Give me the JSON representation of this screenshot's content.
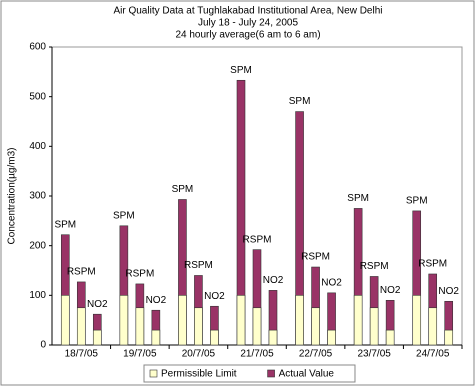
{
  "chart_data": {
    "type": "bar",
    "title": [
      "Air Quality Data at Tughlakabad Institutional Area, New Delhi",
      "July 18 - July 24, 2005",
      "24 hourly average(6 am to 6 am)"
    ],
    "y_label": "Concentration(µg/m3)",
    "groups": [
      "18/7/05",
      "19/7/05",
      "20/7/05",
      "21/7/05",
      "22/7/05",
      "23/7/05",
      "24/7/05"
    ],
    "categories": [
      "SPM",
      "RSPM",
      "NO2",
      "SPM",
      "RSPM",
      "NO2",
      "SPM",
      "RSPM",
      "NO2",
      "SPM",
      "RSPM",
      "NO2",
      "SPM",
      "RSPM",
      "NO2",
      "SPM",
      "RSPM",
      "NO2",
      "SPM",
      "RSPM",
      "NO2"
    ],
    "series": [
      {
        "name": "Permissible Limit",
        "color": "#ffffcc",
        "values": [
          100,
          75,
          30,
          100,
          75,
          30,
          100,
          75,
          30,
          100,
          75,
          30,
          100,
          75,
          30,
          100,
          75,
          30,
          100,
          75,
          30
        ]
      },
      {
        "name": "Actual Value",
        "color": "#993366",
        "values": [
          222,
          127,
          62,
          240,
          123,
          70,
          293,
          140,
          78,
          533,
          192,
          110,
          470,
          157,
          105,
          275,
          138,
          90,
          270,
          143,
          88
        ]
      }
    ],
    "ylim": [
      0,
      600
    ],
    "yticks": [
      0,
      100,
      200,
      300,
      400,
      500,
      600
    ],
    "grid": false
  }
}
